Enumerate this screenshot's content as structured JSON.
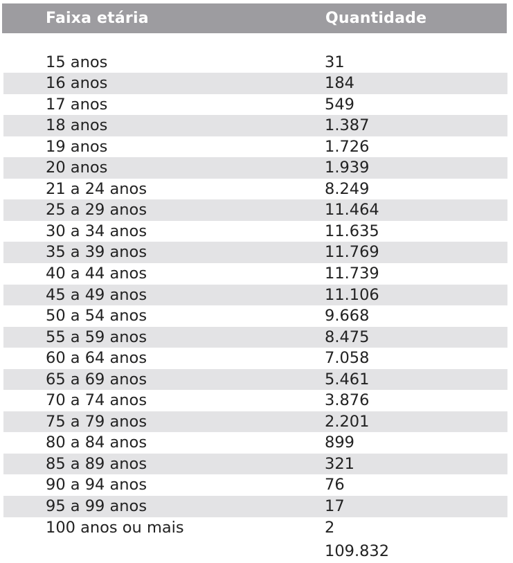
{
  "table": {
    "headers": [
      "Faixa etária",
      "Quantidade"
    ],
    "rows": [
      {
        "faixa": "15 anos",
        "quantidade": "31"
      },
      {
        "faixa": "16 anos",
        "quantidade": "184"
      },
      {
        "faixa": "17 anos",
        "quantidade": "549"
      },
      {
        "faixa": "18 anos",
        "quantidade": "1.387"
      },
      {
        "faixa": "19 anos",
        "quantidade": "1.726"
      },
      {
        "faixa": "20 anos",
        "quantidade": "1.939"
      },
      {
        "faixa": "21 a 24 anos",
        "quantidade": "8.249"
      },
      {
        "faixa": "25 a 29 anos",
        "quantidade": "11.464"
      },
      {
        "faixa": "30 a 34 anos",
        "quantidade": "11.635"
      },
      {
        "faixa": "35 a 39 anos",
        "quantidade": "11.769"
      },
      {
        "faixa": "40 a 44 anos",
        "quantidade": "11.739"
      },
      {
        "faixa": "45 a 49 anos",
        "quantidade": "11.106"
      },
      {
        "faixa": "50 a 54 anos",
        "quantidade": "9.668"
      },
      {
        "faixa": "55 a 59 anos",
        "quantidade": "8.475"
      },
      {
        "faixa": "60 a 64 anos",
        "quantidade": "7.058"
      },
      {
        "faixa": "65 a 69 anos",
        "quantidade": "5.461"
      },
      {
        "faixa": "70 a 74 anos",
        "quantidade": "3.876"
      },
      {
        "faixa": "75 a 79 anos",
        "quantidade": "2.201"
      },
      {
        "faixa": "80 a 84 anos",
        "quantidade": "899"
      },
      {
        "faixa": "85 a 89 anos",
        "quantidade": "321"
      },
      {
        "faixa": "90 a 94 anos",
        "quantidade": "76"
      },
      {
        "faixa": "95 a 99 anos",
        "quantidade": "17"
      },
      {
        "faixa": "100 anos ou mais",
        "quantidade": "2"
      }
    ],
    "total": "109.832"
  },
  "colors": {
    "header_bg": "#9d9ca0",
    "header_text": "#ffffff",
    "band_bg": "#e3e3e5",
    "text": "#222222"
  }
}
